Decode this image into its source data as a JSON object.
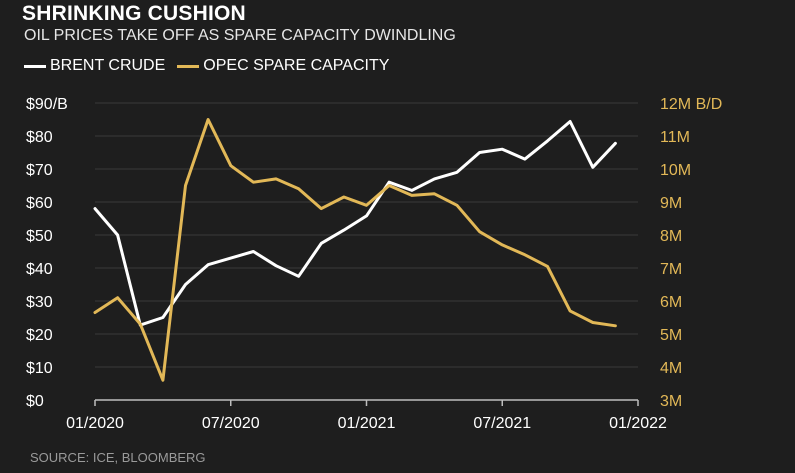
{
  "title": "SHRINKING CUSHION",
  "subtitle": "OIL PRICES TAKE OFF AS SPARE CAPACITY DWINDLING",
  "source": "SOURCE: ICE, BLOOMBERG",
  "colors": {
    "background": "#1e1e1e",
    "brent": "#ffffff",
    "opec": "#e2b857",
    "grid": "#3a3a3a"
  },
  "chart_data": {
    "type": "line",
    "x": [
      "2020-01",
      "2020-02",
      "2020-03",
      "2020-04",
      "2020-05",
      "2020-06",
      "2020-07",
      "2020-08",
      "2020-09",
      "2020-10",
      "2020-11",
      "2020-12",
      "2021-01",
      "2021-02",
      "2021-03",
      "2021-04",
      "2021-05",
      "2021-06",
      "2021-07",
      "2021-08",
      "2021-09",
      "2021-10",
      "2021-11",
      "2021-12"
    ],
    "series": [
      {
        "name": "BRENT CRUDE",
        "axis": "left",
        "color": "#ffffff",
        "values": [
          58,
          50,
          22.7,
          25,
          35,
          41,
          43,
          45,
          40.7,
          37.5,
          47.5,
          51.5,
          55.8,
          66,
          63.5,
          67,
          69,
          75,
          76,
          73,
          78.5,
          84.4,
          70.5,
          77.8
        ]
      },
      {
        "name": "OPEC SPARE CAPACITY",
        "axis": "right",
        "color": "#e2b857",
        "values": [
          5.65,
          6.1,
          5.3,
          3.6,
          9.5,
          11.5,
          10.1,
          9.6,
          9.7,
          9.4,
          8.8,
          9.15,
          8.9,
          9.5,
          9.2,
          9.25,
          8.9,
          8.1,
          7.7,
          7.4,
          7.05,
          5.7,
          5.35,
          5.25
        ]
      }
    ],
    "x_ticks": [
      "01/2020",
      "07/2020",
      "01/2021",
      "07/2021",
      "01/2022"
    ],
    "y_left": {
      "ticks": [
        "$0",
        "$10",
        "$20",
        "$30",
        "$40",
        "$50",
        "$60",
        "$70",
        "$80",
        "$90/B"
      ],
      "values": [
        0,
        10,
        20,
        30,
        40,
        50,
        60,
        70,
        80,
        90
      ],
      "range": [
        0,
        90
      ]
    },
    "y_right": {
      "ticks": [
        "3M",
        "4M",
        "5M",
        "6M",
        "7M",
        "8M",
        "9M",
        "10M",
        "11M",
        "12M B/D"
      ],
      "values": [
        3,
        4,
        5,
        6,
        7,
        8,
        9,
        10,
        11,
        12
      ],
      "range": [
        3,
        12
      ]
    },
    "grid": "horizontal",
    "legend": "top-left"
  }
}
